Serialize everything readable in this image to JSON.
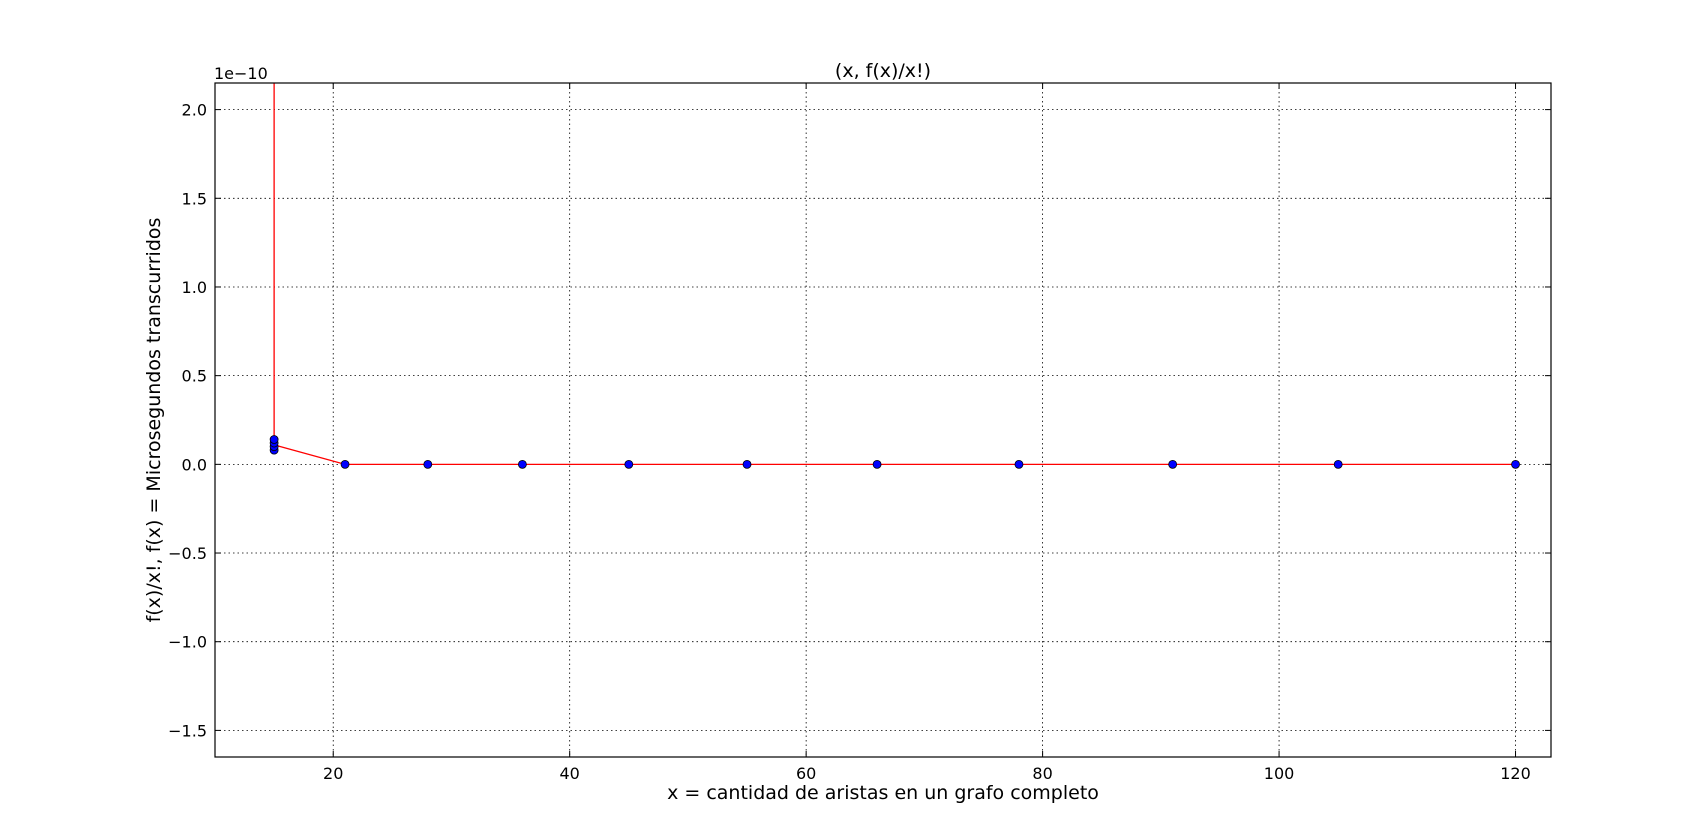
{
  "chart_data": {
    "type": "line",
    "title": "(x, f(x)/x!)",
    "xlabel": "x = cantidad de aristas en un grafo completo",
    "ylabel": "f(x)/x!, f(x) = Microsegundos transcurridos",
    "offset_text": "1e−10",
    "xlim": [
      10,
      123
    ],
    "ylim": [
      -1.65,
      2.15
    ],
    "xticks": [
      20,
      40,
      60,
      80,
      100,
      120
    ],
    "xtick_labels": [
      "20",
      "40",
      "60",
      "80",
      "100",
      "120"
    ],
    "yticks": [
      -1.5,
      -1.0,
      -0.5,
      0.0,
      0.5,
      1.0,
      1.5,
      2.0
    ],
    "ytick_labels": [
      "−1.5",
      "−1.0",
      "−0.5",
      "0.0",
      "0.5",
      "1.0",
      "1.5",
      "2.0"
    ],
    "grid": true,
    "series": [
      {
        "style": "line",
        "color": "#ff0000",
        "x": [
          15,
          15,
          21,
          28,
          36,
          45,
          55,
          66,
          78,
          91,
          105,
          120
        ],
        "y": [
          2.15,
          0.11,
          0.0,
          0.0,
          0.0,
          0.0,
          0.0,
          0.0,
          0.0,
          0.0,
          0.0,
          0.0
        ]
      },
      {
        "style": "markers",
        "color": "#0000ff",
        "x": [
          15,
          15,
          15,
          15,
          21,
          28,
          36,
          45,
          55,
          66,
          78,
          91,
          105,
          120
        ],
        "y": [
          0.08,
          0.1,
          0.12,
          0.14,
          0.0,
          0.0,
          0.0,
          0.0,
          0.0,
          0.0,
          0.0,
          0.0,
          0.0,
          0.0
        ]
      }
    ]
  }
}
